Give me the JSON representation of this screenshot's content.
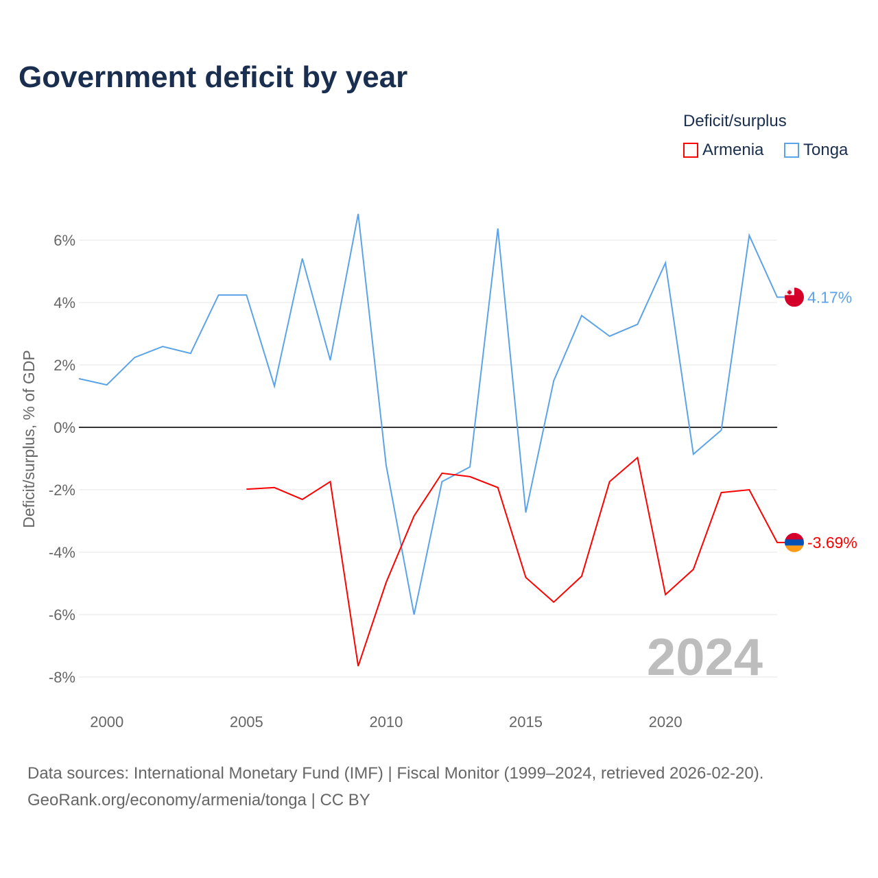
{
  "title": "Government deficit by year",
  "legend": {
    "title": "Deficit/surplus",
    "items": [
      {
        "label": "Armenia",
        "color": "#ff0000"
      },
      {
        "label": "Tonga",
        "color": "#5ba3e8"
      }
    ]
  },
  "footer": {
    "line1": "Data sources: International Monetary Fund (IMF) | Fiscal Monitor (1999–2024, retrieved 2026-02-20).",
    "line2": "GeoRank.org/economy/armenia/tonga | CC BY"
  },
  "chart_data": {
    "type": "line",
    "ylabel": "Deficit/surplus, % of GDP",
    "xlabel": "",
    "xlim": [
      1999,
      2024
    ],
    "ylim": [
      -9,
      7
    ],
    "xticks": [
      2000,
      2005,
      2010,
      2015,
      2020
    ],
    "xtick_labels": [
      "2000",
      "2005",
      "2010",
      "2015",
      "2020"
    ],
    "yticks": [
      6,
      4,
      2,
      0,
      -2,
      -4,
      -6,
      -8
    ],
    "ytick_labels": [
      "6%",
      "4%",
      "2%",
      "0%",
      "-2%",
      "-4%",
      "-6%",
      "-8%"
    ],
    "year_watermark": "2024",
    "series": [
      {
        "name": "Tonga",
        "color": "#5ba3e8",
        "end_label": "4.17%",
        "x": [
          1999,
          2000,
          2001,
          2002,
          2003,
          2004,
          2005,
          2006,
          2007,
          2008,
          2009,
          2010,
          2011,
          2012,
          2013,
          2014,
          2015,
          2016,
          2017,
          2018,
          2019,
          2020,
          2021,
          2022,
          2023,
          2024
        ],
        "values": [
          1.56,
          1.36,
          2.24,
          2.59,
          2.37,
          4.24,
          4.24,
          1.32,
          5.41,
          2.15,
          6.84,
          -1.21,
          -6.0,
          -1.74,
          -1.27,
          6.37,
          -2.73,
          1.49,
          3.58,
          2.92,
          3.3,
          5.27,
          -0.86,
          -0.09,
          6.15,
          4.17
        ]
      },
      {
        "name": "Armenia",
        "color": "#ff0000",
        "end_label": "-3.69%",
        "x": [
          2005,
          2006,
          2007,
          2008,
          2009,
          2010,
          2011,
          2012,
          2013,
          2014,
          2015,
          2016,
          2017,
          2018,
          2019,
          2020,
          2021,
          2022,
          2023,
          2024
        ],
        "values": [
          -1.98,
          -1.93,
          -2.31,
          -1.74,
          -7.65,
          -4.97,
          -2.84,
          -1.47,
          -1.58,
          -1.93,
          -4.81,
          -5.6,
          -4.77,
          -1.74,
          -0.97,
          -5.36,
          -4.55,
          -2.09,
          -2.0,
          -3.69
        ]
      }
    ]
  }
}
